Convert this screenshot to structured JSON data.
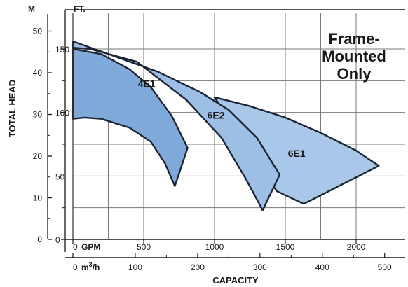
{
  "chart_data": {
    "type": "area",
    "title": "",
    "xlabel": "CAPACITY",
    "ylabel": "TOTAL HEAD",
    "annotation": [
      "Frame-",
      "Mounted",
      "Only"
    ],
    "x_units": {
      "primary": "GPM",
      "secondary": "m³/h",
      "secondary_prefix": "m",
      "secondary_exp": "3",
      "secondary_suffix": "/h"
    },
    "y_units": {
      "left": "M",
      "right": "FT."
    },
    "xlim_gpm": [
      0,
      2200
    ],
    "ylim_ft": [
      0,
      165
    ],
    "grid": true,
    "x_ticks_gpm": [
      "0",
      "500",
      "1000",
      "1500",
      "2000"
    ],
    "x_ticks_m3h": [
      "0",
      "100",
      "200",
      "300",
      "400",
      "500"
    ],
    "y_ticks_ft": [
      "0",
      "50",
      "100",
      "150"
    ],
    "y_ticks_m": [
      "0",
      "10",
      "20",
      "30",
      "40",
      "50"
    ],
    "region_colors": {
      "6E1": "#a9c7e8",
      "6E2": "#9dbfe6",
      "4E1": "#7fa9d9"
    },
    "series": [
      {
        "name": "6E1",
        "points_gpm_ft": [
          [
            1000,
            112
          ],
          [
            1250,
            105
          ],
          [
            1500,
            96
          ],
          [
            1750,
            84
          ],
          [
            2000,
            70
          ],
          [
            2160,
            58
          ],
          [
            1630,
            28
          ],
          [
            1440,
            38
          ]
        ]
      },
      {
        "name": "6E2",
        "points_gpm_ft": [
          [
            0,
            156
          ],
          [
            300,
            144
          ],
          [
            600,
            132
          ],
          [
            900,
            116
          ],
          [
            1100,
            102
          ],
          [
            1300,
            80
          ],
          [
            1460,
            51
          ],
          [
            1340,
            23
          ],
          [
            1220,
            48
          ],
          [
            1050,
            80
          ],
          [
            800,
            110
          ],
          [
            450,
            140
          ],
          [
            120,
            150
          ],
          [
            0,
            151
          ]
        ]
      },
      {
        "name": "4E1",
        "points_gpm_ft": [
          [
            0,
            150
          ],
          [
            200,
            146
          ],
          [
            400,
            134
          ],
          [
            550,
            120
          ],
          [
            700,
            97
          ],
          [
            810,
            72
          ],
          [
            720,
            42
          ],
          [
            650,
            60
          ],
          [
            550,
            77
          ],
          [
            400,
            88
          ],
          [
            200,
            95
          ],
          [
            80,
            96
          ],
          [
            0,
            95
          ]
        ]
      }
    ]
  }
}
